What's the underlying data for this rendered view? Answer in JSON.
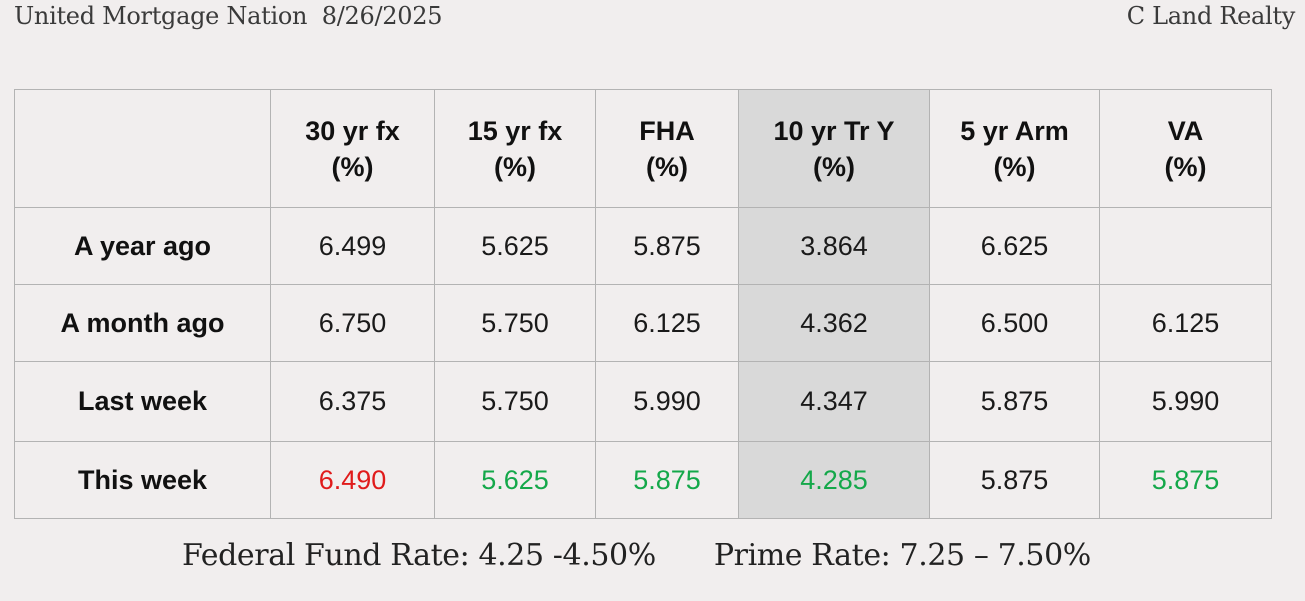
{
  "header": {
    "left_text": "United Mortgage Nation  8/26/2025",
    "right_text": "C Land Realty"
  },
  "table": {
    "columns": [
      {
        "line1": "",
        "line2": ""
      },
      {
        "line1": "30 yr fx",
        "line2": "(%)"
      },
      {
        "line1": "15 yr fx",
        "line2": "(%)"
      },
      {
        "line1": "FHA",
        "line2": "(%)"
      },
      {
        "line1": "10 yr Tr Y",
        "line2": "(%)"
      },
      {
        "line1": "5 yr Arm",
        "line2": "(%)"
      },
      {
        "line1": "VA",
        "line2": "(%)"
      }
    ],
    "rows": [
      {
        "label": "A year ago",
        "values": [
          "6.499",
          "5.625",
          "5.875",
          "3.864",
          "6.625",
          ""
        ]
      },
      {
        "label": "A month ago",
        "values": [
          "6.750",
          "5.750",
          "6.125",
          "4.362",
          "6.500",
          "6.125"
        ]
      },
      {
        "label": "Last week",
        "values": [
          "6.375",
          "5.750",
          "5.990",
          "4.347",
          "5.875",
          "5.990"
        ]
      },
      {
        "label": "This week",
        "values": [
          "6.490",
          "5.625",
          "5.875",
          "4.285",
          "5.875",
          "5.875"
        ]
      }
    ],
    "highlight_color": "#d9d9d9",
    "this_week_colors": [
      "#e01b1b",
      "#14a84a",
      "#14a84a",
      "#14a84a",
      "#1a1a1a",
      "#14a84a"
    ]
  },
  "footer": {
    "federal_fund_rate": "Federal Fund Rate: 4.25 -4.50%",
    "prime_rate": "Prime Rate: 7.25 – 7.50%"
  }
}
